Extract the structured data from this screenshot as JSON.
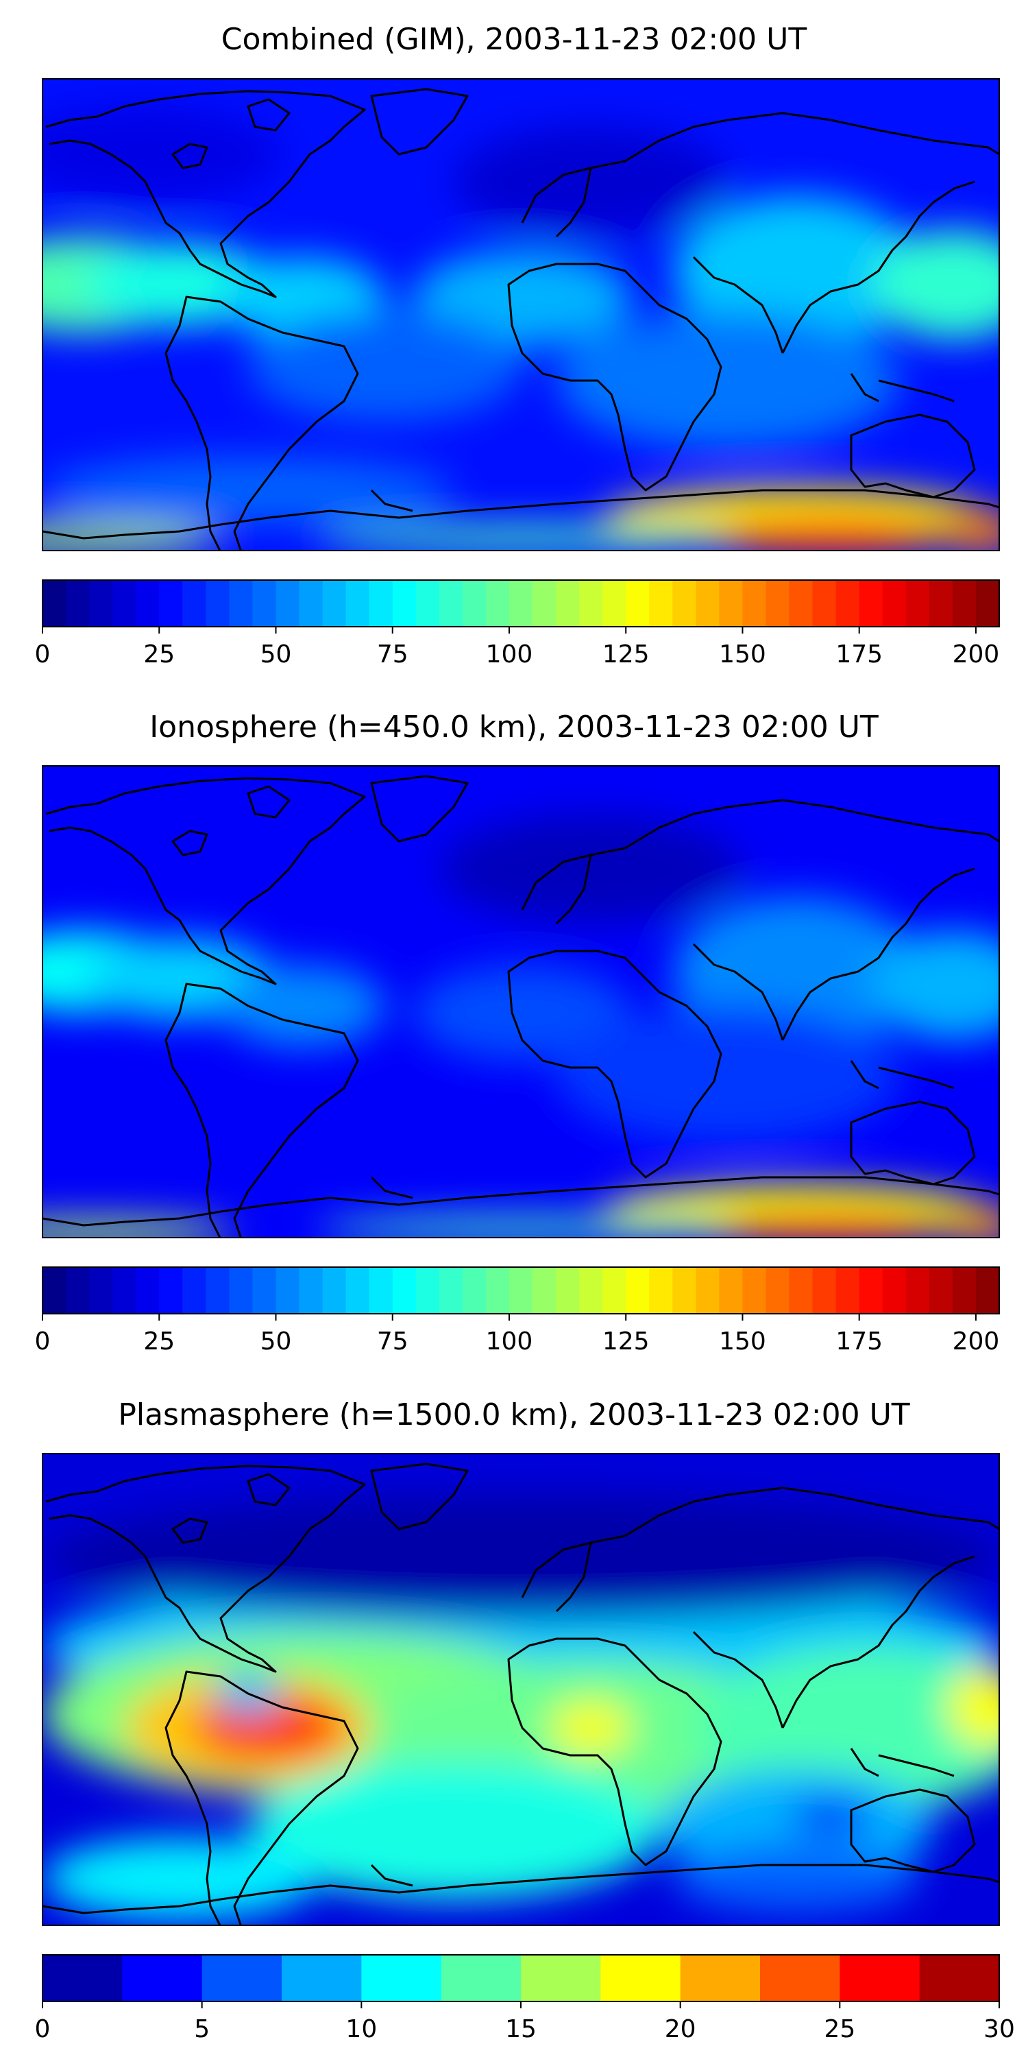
{
  "figure": {
    "panels": [
      {
        "title": "Combined (GIM), 2003-11-23 02:00 UT",
        "colorbar": {
          "min": 0,
          "max": 205,
          "levels": 41,
          "ticks": [
            "0",
            "25",
            "50",
            "75",
            "100",
            "125",
            "150",
            "175",
            "200"
          ]
        }
      },
      {
        "title": "Ionosphere  (h=450.0 km), 2003-11-23 02:00 UT",
        "colorbar": {
          "min": 0,
          "max": 205,
          "levels": 41,
          "ticks": [
            "0",
            "25",
            "50",
            "75",
            "100",
            "125",
            "150",
            "175",
            "200"
          ]
        }
      },
      {
        "title": "Plasmasphere (h=1500.0 km), 2003-11-23 02:00 UT",
        "colorbar": {
          "min": 0,
          "max": 30,
          "levels": 12,
          "ticks": [
            "0",
            "5",
            "10",
            "15",
            "20",
            "25",
            "30"
          ]
        }
      }
    ],
    "colormap": "jet",
    "colormap_stops": [
      "#00007f",
      "#0000ff",
      "#007fff",
      "#00ffff",
      "#7fff7f",
      "#ffff00",
      "#ff7f00",
      "#ff0000",
      "#7f0000"
    ]
  }
}
